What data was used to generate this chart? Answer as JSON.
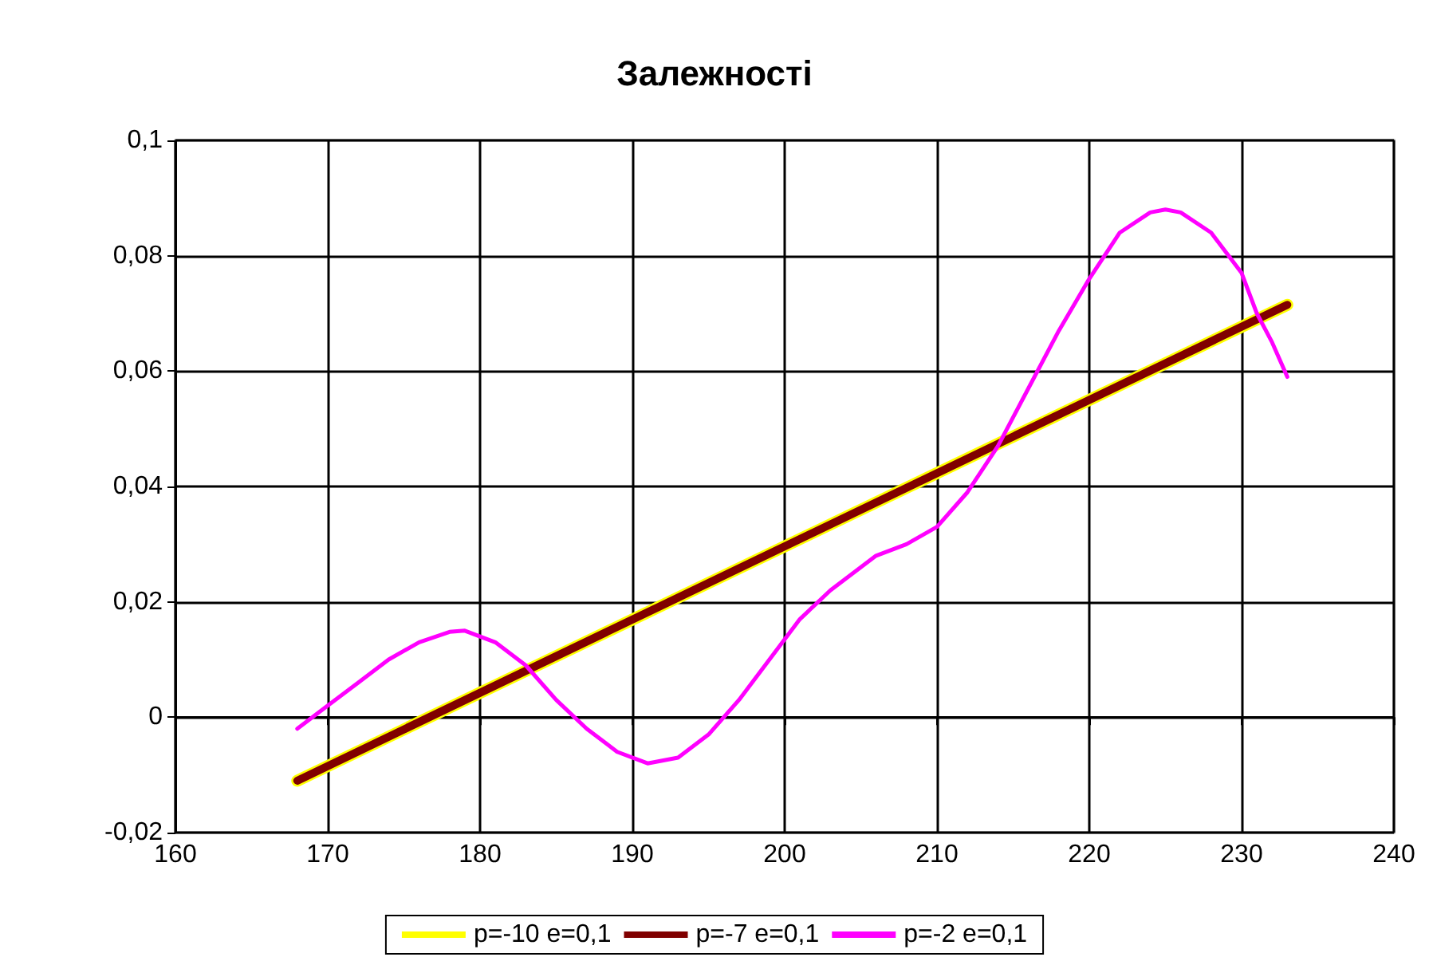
{
  "chart_data": {
    "type": "line",
    "title": "Залежності",
    "xlim": [
      160,
      240
    ],
    "xticks": [
      160,
      170,
      180,
      190,
      200,
      210,
      220,
      230,
      240
    ],
    "ylim": [
      -0.02,
      0.1
    ],
    "yticks": [
      {
        "value": -0.02,
        "label": "-0,02"
      },
      {
        "value": 0,
        "label": "0"
      },
      {
        "value": 0.02,
        "label": "0,02"
      },
      {
        "value": 0.04,
        "label": "0,04"
      },
      {
        "value": 0.06,
        "label": "0,06"
      },
      {
        "value": 0.08,
        "label": "0,08"
      },
      {
        "value": 0.1,
        "label": "0,1"
      }
    ],
    "grid": true,
    "legend": "bottom",
    "marker": "none",
    "line_style": "solid",
    "series": [
      {
        "name": "p=-10 e=0,1",
        "color": "#ffff00",
        "x": [
          168,
          233
        ],
        "values": [
          -0.011,
          0.0715
        ]
      },
      {
        "name": "p=-7 e=0,1",
        "color": "#800000",
        "x": [
          168,
          233
        ],
        "values": [
          -0.011,
          0.0715
        ]
      },
      {
        "name": "p=-2 e=0,1",
        "color": "#ff00ff",
        "x": [
          168,
          170,
          172,
          174,
          176,
          178,
          179,
          181,
          183,
          185,
          187,
          189,
          191,
          193,
          195,
          197,
          199,
          201,
          203,
          205,
          206,
          208,
          210,
          212,
          214,
          216,
          218,
          220,
          222,
          224,
          225,
          226,
          228,
          230,
          231,
          232,
          233
        ],
        "values": [
          -0.002,
          0.002,
          0.006,
          0.01,
          0.013,
          0.0148,
          0.015,
          0.013,
          0.009,
          0.003,
          -0.002,
          -0.006,
          -0.008,
          -0.007,
          -0.003,
          0.003,
          0.01,
          0.017,
          0.022,
          0.026,
          0.028,
          0.03,
          0.033,
          0.039,
          0.047,
          0.057,
          0.067,
          0.076,
          0.084,
          0.0875,
          0.088,
          0.0875,
          0.084,
          0.077,
          0.07,
          0.065,
          0.059
        ]
      }
    ]
  }
}
